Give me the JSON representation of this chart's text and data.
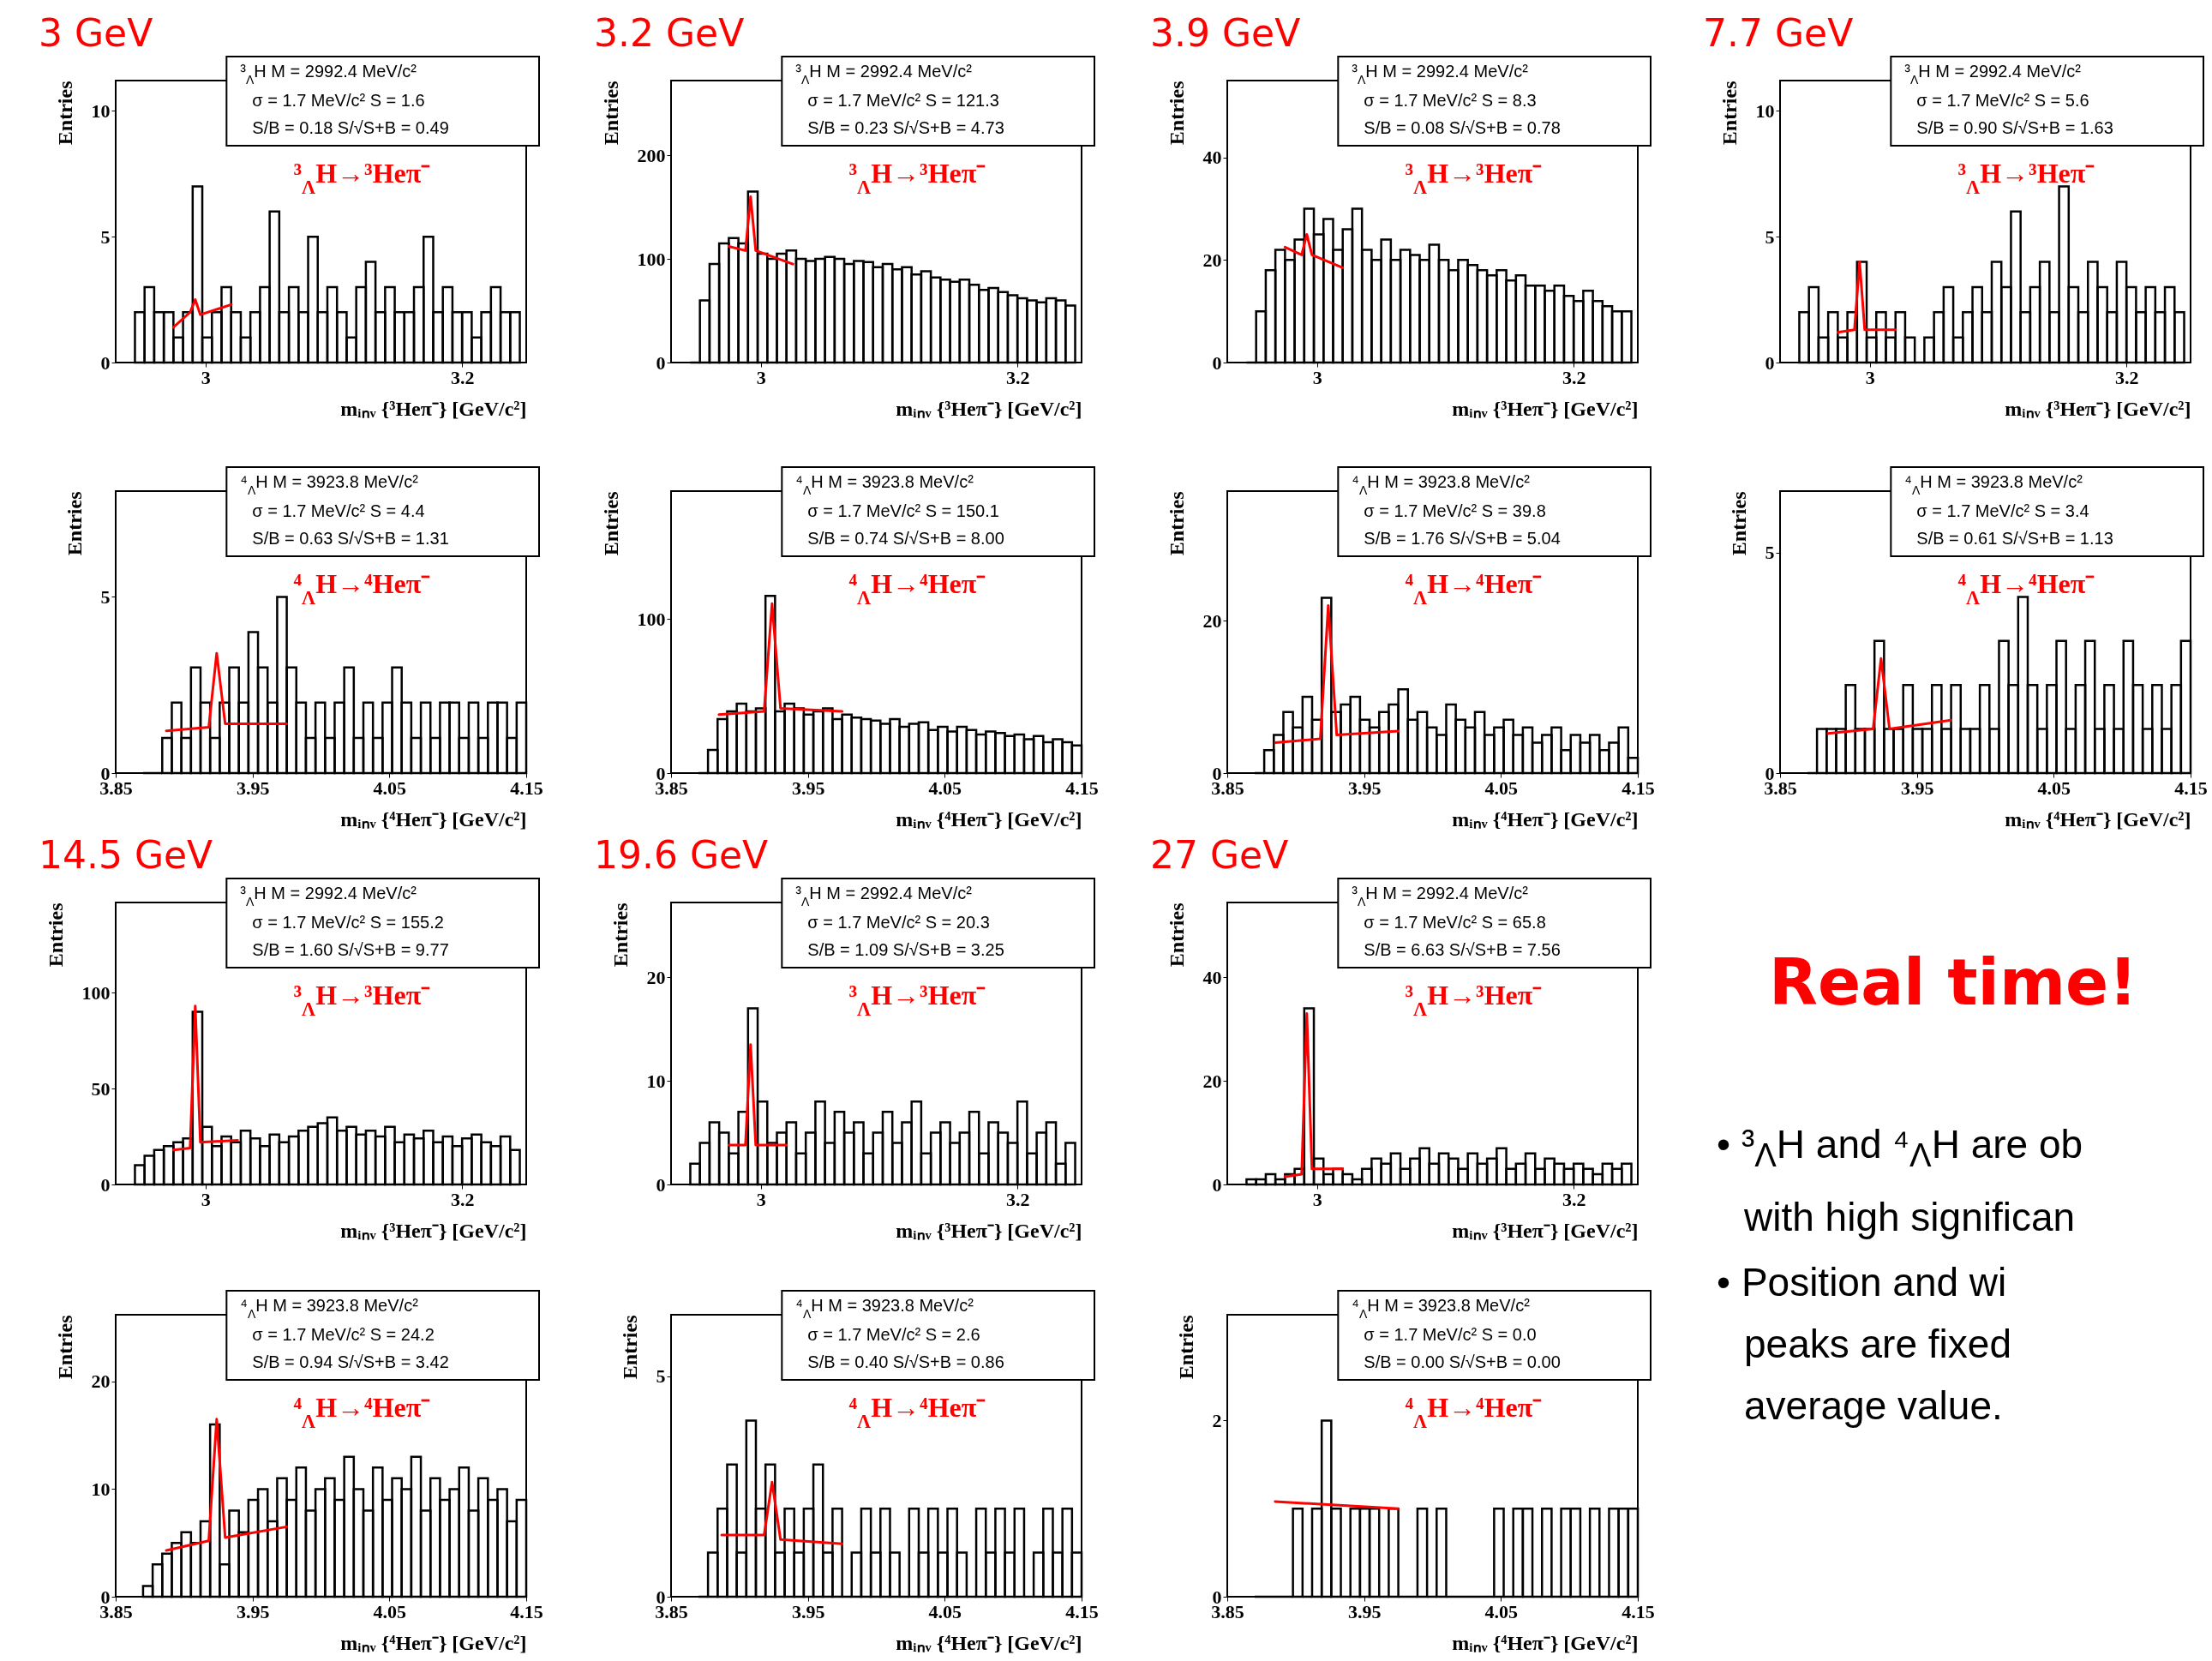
{
  "chart_data": [
    {
      "type": "histogram",
      "title": "3 GeV",
      "xlabel": "mᵢₙᵥ {³Heπ⁻} [GeV/c²]",
      "ylabel": "Entries",
      "xlim": [
        2.93,
        3.25
      ],
      "xticks": [
        3,
        3.2
      ],
      "ylim": [
        0,
        11.2
      ],
      "yticks": [
        0,
        5,
        10
      ],
      "bins": [
        2.945,
        2.9525,
        2.96,
        2.9675,
        2.975,
        2.9825,
        2.99,
        2.9975,
        3.005,
        3.0125,
        3.02,
        3.0275,
        3.035,
        3.0425,
        3.05,
        3.0575,
        3.065,
        3.0725,
        3.08,
        3.0875,
        3.095,
        3.1025,
        3.11,
        3.1175,
        3.125,
        3.1325,
        3.14,
        3.1475,
        3.155,
        3.1625,
        3.17,
        3.1775,
        3.185,
        3.1925,
        3.2,
        3.2075,
        3.215,
        3.2225,
        3.23,
        3.2375,
        3.245
      ],
      "series": [
        {
          "type": "histogram",
          "color": "#000000",
          "values": [
            2,
            3,
            2,
            2,
            1,
            2,
            7,
            1,
            2,
            3,
            2,
            1,
            2,
            3,
            6,
            2,
            3,
            2,
            5,
            2,
            3,
            2,
            1,
            3,
            4,
            2,
            3,
            2,
            2,
            3,
            5,
            2,
            3,
            2,
            2,
            1,
            2,
            3,
            2,
            2
          ]
        },
        {
          "type": "line",
          "color": "#ff0000",
          "x": [
            2.975,
            2.988,
            2.992,
            2.996,
            3.02
          ],
          "values": [
            1.4,
            2.0,
            2.5,
            1.9,
            2.3
          ]
        }
      ],
      "annotations": [
        "³$_{Λ}$H M = 2992.4 MeV/c²",
        "σ = 1.7 MeV/c²  S = 1.6",
        "S/B = 0.18  S/√S+B = 0.49",
        "³$_{Λ}$H→³Heπ⁻"
      ]
    },
    {
      "type": "histogram",
      "title": "3.2 GeV",
      "xlabel": "mᵢₙᵥ {³Heπ⁻} [GeV/c²]",
      "ylabel": "Entries",
      "xlim": [
        2.93,
        3.25
      ],
      "xticks": [
        3,
        3.2
      ],
      "ylim": [
        0,
        272
      ],
      "yticks": [
        0,
        100,
        200
      ],
      "bins": [
        2.945,
        2.9525,
        2.96,
        2.9675,
        2.975,
        2.9825,
        2.99,
        2.9975,
        3.005,
        3.0125,
        3.02,
        3.0275,
        3.035,
        3.0425,
        3.05,
        3.0575,
        3.065,
        3.0725,
        3.08,
        3.0875,
        3.095,
        3.1025,
        3.11,
        3.1175,
        3.125,
        3.1325,
        3.14,
        3.1475,
        3.155,
        3.1625,
        3.17,
        3.1775,
        3.185,
        3.1925,
        3.2,
        3.2075,
        3.215,
        3.2225,
        3.23,
        3.2375,
        3.245
      ],
      "series": [
        {
          "type": "histogram",
          "color": "#000000",
          "values": [
            0,
            60,
            95,
            115,
            120,
            115,
            165,
            105,
            100,
            105,
            108,
            100,
            98,
            100,
            102,
            100,
            95,
            98,
            97,
            92,
            95,
            90,
            92,
            85,
            88,
            82,
            80,
            78,
            80,
            75,
            70,
            72,
            68,
            65,
            62,
            60,
            58,
            62,
            60,
            55
          ]
        },
        {
          "type": "line",
          "color": "#ff0000",
          "x": [
            2.975,
            2.988,
            2.992,
            2.996,
            3.025
          ],
          "values": [
            112,
            108,
            160,
            108,
            95
          ]
        }
      ],
      "annotations": [
        "³$_{Λ}$H M = 2992.4 MeV/c²",
        "σ = 1.7 MeV/c²  S = 121.3",
        "S/B = 0.23  S/√S+B = 4.73",
        "³$_{Λ}$H→³Heπ⁻"
      ]
    },
    {
      "type": "histogram",
      "title": "3.9 GeV",
      "xlabel": "mᵢₙᵥ {³Heπ⁻} [GeV/c²]",
      "ylabel": "Entries",
      "xlim": [
        2.93,
        3.25
      ],
      "xticks": [
        3,
        3.2
      ],
      "ylim": [
        0,
        55
      ],
      "yticks": [
        0,
        20,
        40
      ],
      "bins": [
        2.945,
        2.9525,
        2.96,
        2.9675,
        2.975,
        2.9825,
        2.99,
        2.9975,
        3.005,
        3.0125,
        3.02,
        3.0275,
        3.035,
        3.0425,
        3.05,
        3.0575,
        3.065,
        3.0725,
        3.08,
        3.0875,
        3.095,
        3.1025,
        3.11,
        3.1175,
        3.125,
        3.1325,
        3.14,
        3.1475,
        3.155,
        3.1625,
        3.17,
        3.1775,
        3.185,
        3.1925,
        3.2,
        3.2075,
        3.215,
        3.2225,
        3.23,
        3.2375,
        3.245
      ],
      "series": [
        {
          "type": "histogram",
          "color": "#000000",
          "values": [
            0,
            10,
            18,
            22,
            20,
            24,
            30,
            25,
            28,
            22,
            26,
            30,
            22,
            20,
            24,
            20,
            22,
            21,
            20,
            23,
            20,
            18,
            20,
            19,
            18,
            17,
            18,
            16,
            17,
            15,
            15,
            14,
            15,
            13,
            12,
            14,
            12,
            11,
            10,
            10
          ]
        },
        {
          "type": "line",
          "color": "#ff0000",
          "x": [
            2.975,
            2.988,
            2.992,
            2.996,
            3.02
          ],
          "values": [
            22.5,
            21,
            25,
            21,
            18.5
          ]
        }
      ],
      "annotations": [
        "³$_{Λ}$H M = 2992.4 MeV/c²",
        "σ = 1.7 MeV/c²  S = 8.3",
        "S/B = 0.08  S/√S+B = 0.78",
        "³$_{Λ}$H→³Heπ⁻"
      ]
    },
    {
      "type": "histogram",
      "title": "7.7 GeV",
      "xlabel": "mᵢₙᵥ {³Heπ⁻} [GeV/c²]",
      "ylabel": "Entries",
      "xlim": [
        2.93,
        3.25
      ],
      "xticks": [
        3,
        3.2
      ],
      "ylim": [
        0,
        11.2
      ],
      "yticks": [
        0,
        5,
        10
      ],
      "bins": [
        2.945,
        2.9525,
        2.96,
        2.9675,
        2.975,
        2.9825,
        2.99,
        2.9975,
        3.005,
        3.0125,
        3.02,
        3.0275,
        3.035,
        3.0425,
        3.05,
        3.0575,
        3.065,
        3.0725,
        3.08,
        3.0875,
        3.095,
        3.1025,
        3.11,
        3.1175,
        3.125,
        3.1325,
        3.14,
        3.1475,
        3.155,
        3.1625,
        3.17,
        3.1775,
        3.185,
        3.1925,
        3.2,
        3.2075,
        3.215,
        3.2225,
        3.23,
        3.2375,
        3.245
      ],
      "series": [
        {
          "type": "histogram",
          "color": "#000000",
          "values": [
            2,
            3,
            1,
            2,
            1,
            2,
            4,
            1,
            2,
            1,
            2,
            1,
            0,
            1,
            2,
            3,
            1,
            2,
            3,
            2,
            4,
            3,
            6,
            2,
            3,
            4,
            2,
            7,
            3,
            2,
            4,
            3,
            2,
            4,
            3,
            2,
            3,
            2,
            3,
            2
          ]
        },
        {
          "type": "line",
          "color": "#ff0000",
          "x": [
            2.975,
            2.988,
            2.992,
            2.996,
            3.02
          ],
          "values": [
            1.2,
            1.3,
            4,
            1.3,
            1.3
          ]
        }
      ],
      "annotations": [
        "³$_{Λ}$H M = 2992.4 MeV/c²",
        "σ = 1.7 MeV/c²  S = 5.6",
        "S/B = 0.90  S/√S+B = 1.63",
        "³$_{Λ}$H→³Heπ⁻"
      ]
    },
    {
      "type": "histogram",
      "xlabel": "mᵢₙᵥ {⁴Heπ⁻} [GeV/c²]",
      "ylabel": "Entries",
      "xlim": [
        3.85,
        4.15
      ],
      "xticks": [
        3.85,
        3.95,
        4.05,
        4.15
      ],
      "ylim": [
        0,
        8
      ],
      "yticks": [
        0,
        5
      ],
      "bins": [
        3.87,
        3.877,
        3.884,
        3.891,
        3.898,
        3.905,
        3.912,
        3.919,
        3.926,
        3.933,
        3.94,
        3.947,
        3.954,
        3.961,
        3.968,
        3.975,
        3.982,
        3.989,
        3.996,
        4.003,
        4.01,
        4.017,
        4.024,
        4.031,
        4.038,
        4.045,
        4.052,
        4.059,
        4.066,
        4.073,
        4.08,
        4.087,
        4.094,
        4.101,
        4.108,
        4.115,
        4.122,
        4.129,
        4.136,
        4.143,
        4.15
      ],
      "series": [
        {
          "type": "histogram",
          "color": "#000000",
          "values": [
            0,
            0,
            1,
            2,
            1,
            3,
            2,
            1,
            2,
            3,
            2,
            4,
            3,
            2,
            5,
            3,
            2,
            1,
            2,
            1,
            2,
            3,
            1,
            2,
            1,
            2,
            3,
            2,
            1,
            2,
            1,
            2,
            2,
            1,
            2,
            1,
            2,
            2,
            1,
            2
          ]
        },
        {
          "type": "line",
          "color": "#ff0000",
          "x": [
            3.887,
            3.918,
            3.9238,
            3.93,
            3.975
          ],
          "values": [
            1.2,
            1.3,
            3.4,
            1.4,
            1.4
          ]
        }
      ],
      "annotations": [
        "⁴$_{Λ}$H M = 3923.8 MeV/c²",
        "σ = 1.7 MeV/c²  S = 4.4",
        "S/B = 0.63  S/√S+B = 1.31",
        "⁴$_{Λ}$H→⁴Heπ⁻"
      ]
    },
    {
      "type": "histogram",
      "xlabel": "mᵢₙᵥ {⁴Heπ⁻} [GeV/c²]",
      "ylabel": "Entries",
      "xlim": [
        3.85,
        4.15
      ],
      "xticks": [
        3.85,
        3.95,
        4.05,
        4.15
      ],
      "ylim": [
        0,
        183
      ],
      "yticks": [
        0,
        100
      ],
      "bins": [
        3.87,
        3.877,
        3.884,
        3.891,
        3.898,
        3.905,
        3.912,
        3.919,
        3.926,
        3.933,
        3.94,
        3.947,
        3.954,
        3.961,
        3.968,
        3.975,
        3.982,
        3.989,
        3.996,
        4.003,
        4.01,
        4.017,
        4.024,
        4.031,
        4.038,
        4.045,
        4.052,
        4.059,
        4.066,
        4.073,
        4.08,
        4.087,
        4.094,
        4.101,
        4.108,
        4.115,
        4.122,
        4.129,
        4.136,
        4.143,
        4.15
      ],
      "series": [
        {
          "type": "histogram",
          "color": "#000000",
          "values": [
            0,
            15,
            35,
            40,
            45,
            40,
            42,
            115,
            40,
            45,
            42,
            38,
            40,
            42,
            35,
            38,
            36,
            35,
            34,
            32,
            35,
            30,
            32,
            33,
            28,
            30,
            27,
            30,
            28,
            25,
            27,
            26,
            24,
            25,
            22,
            24,
            20,
            22,
            20,
            18
          ]
        },
        {
          "type": "line",
          "color": "#ff0000",
          "x": [
            3.885,
            3.918,
            3.9238,
            3.93,
            3.975
          ],
          "values": [
            38,
            40,
            110,
            42,
            40
          ]
        }
      ],
      "annotations": [
        "⁴$_{Λ}$H M = 3923.8 MeV/c²",
        "σ = 1.7 MeV/c²  S = 150.1",
        "S/B = 0.74  S/√S+B = 8.00",
        "⁴$_{Λ}$H→⁴Heπ⁻"
      ]
    },
    {
      "type": "histogram",
      "xlabel": "mᵢₙᵥ {⁴Heπ⁻} [GeV/c²]",
      "ylabel": "Entries",
      "xlim": [
        3.85,
        4.15
      ],
      "xticks": [
        3.85,
        3.95,
        4.05,
        4.15
      ],
      "ylim": [
        0,
        37
      ],
      "yticks": [
        0,
        20
      ],
      "bins": [
        3.87,
        3.877,
        3.884,
        3.891,
        3.898,
        3.905,
        3.912,
        3.919,
        3.926,
        3.933,
        3.94,
        3.947,
        3.954,
        3.961,
        3.968,
        3.975,
        3.982,
        3.989,
        3.996,
        4.003,
        4.01,
        4.017,
        4.024,
        4.031,
        4.038,
        4.045,
        4.052,
        4.059,
        4.066,
        4.073,
        4.08,
        4.087,
        4.094,
        4.101,
        4.108,
        4.115,
        4.122,
        4.129,
        4.136,
        4.143,
        4.15
      ],
      "series": [
        {
          "type": "histogram",
          "color": "#000000",
          "values": [
            0,
            3,
            5,
            8,
            6,
            10,
            7,
            23,
            8,
            9,
            10,
            7,
            6,
            8,
            9,
            11,
            7,
            8,
            6,
            5,
            9,
            7,
            6,
            8,
            5,
            6,
            7,
            5,
            6,
            4,
            5,
            6,
            3,
            5,
            4,
            5,
            3,
            4,
            6,
            2
          ]
        },
        {
          "type": "line",
          "color": "#ff0000",
          "x": [
            3.885,
            3.918,
            3.9238,
            3.93,
            3.975
          ],
          "values": [
            4,
            4.5,
            22,
            5,
            5.5
          ]
        }
      ],
      "annotations": [
        "⁴$_{Λ}$H M = 3923.8 MeV/c²",
        "σ = 1.7 MeV/c²  S = 39.8",
        "S/B = 1.76  S/√S+B = 5.04",
        "⁴$_{Λ}$H→⁴Heπ⁻"
      ]
    },
    {
      "type": "histogram",
      "xlabel": "mᵢₙᵥ {⁴Heπ⁻} [GeV/c²]",
      "ylabel": "Entries",
      "xlim": [
        3.85,
        4.15
      ],
      "xticks": [
        3.85,
        3.95,
        4.05,
        4.15
      ],
      "ylim": [
        0,
        6.4
      ],
      "yticks": [
        0,
        5
      ],
      "bins": [
        3.87,
        3.877,
        3.884,
        3.891,
        3.898,
        3.905,
        3.912,
        3.919,
        3.926,
        3.933,
        3.94,
        3.947,
        3.954,
        3.961,
        3.968,
        3.975,
        3.982,
        3.989,
        3.996,
        4.003,
        4.01,
        4.017,
        4.024,
        4.031,
        4.038,
        4.045,
        4.052,
        4.059,
        4.066,
        4.073,
        4.08,
        4.087,
        4.094,
        4.101,
        4.108,
        4.115,
        4.122,
        4.129,
        4.136,
        4.143,
        4.15
      ],
      "series": [
        {
          "type": "histogram",
          "color": "#000000",
          "values": [
            0,
            1,
            1,
            1,
            2,
            1,
            1,
            3,
            1,
            1,
            2,
            1,
            1,
            2,
            1,
            2,
            1,
            1,
            2,
            1,
            3,
            2,
            4,
            2,
            1,
            2,
            3,
            1,
            2,
            3,
            1,
            2,
            1,
            3,
            2,
            1,
            2,
            1,
            2,
            3
          ]
        },
        {
          "type": "line",
          "color": "#ff0000",
          "x": [
            3.885,
            3.918,
            3.9238,
            3.93,
            3.975
          ],
          "values": [
            0.9,
            1.0,
            2.6,
            1.0,
            1.2
          ]
        }
      ],
      "annotations": [
        "⁴$_{Λ}$H M = 3923.8 MeV/c²",
        "σ = 1.7 MeV/c²  S = 3.4",
        "S/B = 0.61  S/√S+B = 1.13",
        "⁴$_{Λ}$H→⁴Heπ⁻"
      ]
    },
    {
      "type": "histogram",
      "title": "14.5 GeV",
      "xlabel": "mᵢₙᵥ {³Heπ⁻} [GeV/c²]",
      "ylabel": "Entries",
      "xlim": [
        2.93,
        3.25
      ],
      "xticks": [
        3,
        3.2
      ],
      "ylim": [
        0,
        147
      ],
      "yticks": [
        0,
        50,
        100
      ],
      "bins": [
        2.945,
        2.9525,
        2.96,
        2.9675,
        2.975,
        2.9825,
        2.99,
        2.9975,
        3.005,
        3.0125,
        3.02,
        3.0275,
        3.035,
        3.0425,
        3.05,
        3.0575,
        3.065,
        3.0725,
        3.08,
        3.0875,
        3.095,
        3.1025,
        3.11,
        3.1175,
        3.125,
        3.1325,
        3.14,
        3.1475,
        3.155,
        3.1625,
        3.17,
        3.1775,
        3.185,
        3.1925,
        3.2,
        3.2075,
        3.215,
        3.2225,
        3.23,
        3.2375,
        3.245
      ],
      "series": [
        {
          "type": "histogram",
          "color": "#000000",
          "values": [
            10,
            15,
            18,
            20,
            22,
            24,
            90,
            30,
            20,
            25,
            22,
            28,
            24,
            20,
            26,
            22,
            25,
            28,
            30,
            32,
            35,
            28,
            30,
            26,
            28,
            25,
            30,
            22,
            26,
            24,
            28,
            22,
            25,
            20,
            24,
            26,
            22,
            20,
            25,
            18
          ]
        },
        {
          "type": "line",
          "color": "#ff0000",
          "x": [
            2.975,
            2.988,
            2.992,
            2.996,
            3.025
          ],
          "values": [
            18,
            19,
            93,
            22,
            23
          ]
        }
      ],
      "annotations": [
        "³$_{Λ}$H M = 2992.4 MeV/c²",
        "σ = 1.7 MeV/c²  S = 155.2",
        "S/B = 1.60  S/√S+B = 9.77",
        "³$_{Λ}$H→³Heπ⁻"
      ]
    },
    {
      "type": "histogram",
      "title": "19.6 GeV",
      "xlabel": "mᵢₙᵥ {³Heπ⁻} [GeV/c²]",
      "ylabel": "Entries",
      "xlim": [
        2.93,
        3.25
      ],
      "xticks": [
        3,
        3.2
      ],
      "ylim": [
        0,
        27.2
      ],
      "yticks": [
        0,
        10,
        20
      ],
      "bins": [
        2.945,
        2.9525,
        2.96,
        2.9675,
        2.975,
        2.9825,
        2.99,
        2.9975,
        3.005,
        3.0125,
        3.02,
        3.0275,
        3.035,
        3.0425,
        3.05,
        3.0575,
        3.065,
        3.0725,
        3.08,
        3.0875,
        3.095,
        3.1025,
        3.11,
        3.1175,
        3.125,
        3.1325,
        3.14,
        3.1475,
        3.155,
        3.1625,
        3.17,
        3.1775,
        3.185,
        3.1925,
        3.2,
        3.2075,
        3.215,
        3.2225,
        3.23,
        3.2375,
        3.245
      ],
      "series": [
        {
          "type": "histogram",
          "color": "#000000",
          "values": [
            2,
            4,
            6,
            5,
            3,
            7,
            17,
            8,
            4,
            5,
            6,
            3,
            5,
            8,
            4,
            7,
            5,
            6,
            3,
            5,
            7,
            4,
            6,
            8,
            3,
            5,
            6,
            4,
            5,
            7,
            3,
            6,
            5,
            4,
            8,
            3,
            5,
            6,
            2,
            4
          ]
        },
        {
          "type": "line",
          "color": "#ff0000",
          "x": [
            2.975,
            2.988,
            2.992,
            2.996,
            3.02
          ],
          "values": [
            3.8,
            3.8,
            13.5,
            3.8,
            3.8
          ]
        }
      ],
      "annotations": [
        "³$_{Λ}$H M = 2992.4 MeV/c²",
        "σ = 1.7 MeV/c²  S = 20.3",
        "S/B = 1.09  S/√S+B = 3.25",
        "³$_{Λ}$H→³Heπ⁻"
      ]
    },
    {
      "type": "histogram",
      "title": "27 GeV",
      "xlabel": "mᵢₙᵥ {³Heπ⁻} [GeV/c²]",
      "ylabel": "Entries",
      "xlim": [
        2.93,
        3.25
      ],
      "xticks": [
        3,
        3.2
      ],
      "ylim": [
        0,
        54.4
      ],
      "yticks": [
        0,
        20,
        40
      ],
      "bins": [
        2.945,
        2.9525,
        2.96,
        2.9675,
        2.975,
        2.9825,
        2.99,
        2.9975,
        3.005,
        3.0125,
        3.02,
        3.0275,
        3.035,
        3.0425,
        3.05,
        3.0575,
        3.065,
        3.0725,
        3.08,
        3.0875,
        3.095,
        3.1025,
        3.11,
        3.1175,
        3.125,
        3.1325,
        3.14,
        3.1475,
        3.155,
        3.1625,
        3.17,
        3.1775,
        3.185,
        3.1925,
        3.2,
        3.2075,
        3.215,
        3.2225,
        3.23,
        3.2375,
        3.245
      ],
      "series": [
        {
          "type": "histogram",
          "color": "#000000",
          "values": [
            1,
            1,
            2,
            1,
            2,
            3,
            34,
            5,
            2,
            3,
            2,
            1,
            3,
            5,
            4,
            6,
            3,
            5,
            7,
            4,
            6,
            5,
            3,
            6,
            4,
            5,
            7,
            3,
            4,
            6,
            3,
            5,
            4,
            3,
            4,
            3,
            2,
            4,
            3,
            4
          ]
        },
        {
          "type": "line",
          "color": "#ff0000",
          "x": [
            2.975,
            2.988,
            2.992,
            2.996,
            3.02
          ],
          "values": [
            1.5,
            2,
            33,
            3,
            3
          ]
        }
      ],
      "annotations": [
        "³$_{Λ}$H M = 2992.4 MeV/c²",
        "σ = 1.7 MeV/c²  S = 65.8",
        "S/B = 6.63  S/√S+B = 7.56",
        "³$_{Λ}$H→³Heπ⁻"
      ]
    },
    {
      "type": "other",
      "title": "Real time!",
      "annotations": [
        "• ³$_{Λ}$H and ⁴$_{Λ}$H are ob\nwith high significan",
        "• Position and wi\npeaks are fixed\naverage value."
      ]
    },
    {
      "type": "histogram",
      "xlabel": "mᵢₙᵥ {⁴Heπ⁻} [GeV/c²]",
      "ylabel": "Entries",
      "xlim": [
        3.85,
        4.15
      ],
      "xticks": [
        3.85,
        3.95,
        4.05,
        4.15
      ],
      "ylim": [
        0,
        26.2
      ],
      "yticks": [
        0,
        10,
        20
      ],
      "bins": [
        3.87,
        3.877,
        3.884,
        3.891,
        3.898,
        3.905,
        3.912,
        3.919,
        3.926,
        3.933,
        3.94,
        3.947,
        3.954,
        3.961,
        3.968,
        3.975,
        3.982,
        3.989,
        3.996,
        4.003,
        4.01,
        4.017,
        4.024,
        4.031,
        4.038,
        4.045,
        4.052,
        4.059,
        4.066,
        4.073,
        4.08,
        4.087,
        4.094,
        4.101,
        4.108,
        4.115,
        4.122,
        4.129,
        4.136,
        4.143,
        4.15
      ],
      "series": [
        {
          "type": "histogram",
          "color": "#000000",
          "values": [
            1,
            3,
            4,
            5,
            6,
            5,
            7,
            16,
            3,
            8,
            6,
            9,
            10,
            7,
            11,
            9,
            12,
            8,
            10,
            11,
            9,
            13,
            10,
            8,
            12,
            9,
            11,
            10,
            13,
            8,
            11,
            9,
            10,
            12,
            8,
            11,
            9,
            10,
            7,
            9
          ]
        },
        {
          "type": "line",
          "color": "#ff0000",
          "x": [
            3.887,
            3.918,
            3.9238,
            3.93,
            3.975
          ],
          "values": [
            4.3,
            5.2,
            16.5,
            5.5,
            6.5
          ]
        }
      ],
      "annotations": [
        "⁴$_{Λ}$H M = 3923.8 MeV/c²",
        "σ = 1.7 MeV/c²  S = 24.2",
        "S/B = 0.94  S/√S+B = 3.42",
        "⁴$_{Λ}$H→⁴Heπ⁻"
      ]
    },
    {
      "type": "histogram",
      "xlabel": "mᵢₙᵥ {⁴Heπ⁻} [GeV/c²]",
      "ylabel": "Entries",
      "xlim": [
        3.85,
        4.15
      ],
      "xticks": [
        3.85,
        3.95,
        4.05,
        4.15
      ],
      "ylim": [
        0,
        6.4
      ],
      "yticks": [
        0,
        5
      ],
      "bins": [
        3.87,
        3.877,
        3.884,
        3.891,
        3.898,
        3.905,
        3.912,
        3.919,
        3.926,
        3.933,
        3.94,
        3.947,
        3.954,
        3.961,
        3.968,
        3.975,
        3.982,
        3.989,
        3.996,
        4.003,
        4.01,
        4.017,
        4.024,
        4.031,
        4.038,
        4.045,
        4.052,
        4.059,
        4.066,
        4.073,
        4.08,
        4.087,
        4.094,
        4.101,
        4.108,
        4.115,
        4.122,
        4.129,
        4.136,
        4.143,
        4.15
      ],
      "series": [
        {
          "type": "histogram",
          "color": "#000000",
          "values": [
            0,
            1,
            2,
            3,
            1,
            4,
            2,
            3,
            1,
            2,
            1,
            2,
            3,
            1,
            2,
            0,
            1,
            2,
            1,
            2,
            1,
            0,
            2,
            1,
            2,
            1,
            2,
            1,
            0,
            2,
            1,
            2,
            1,
            2,
            0,
            1,
            2,
            1,
            2,
            1
          ]
        },
        {
          "type": "line",
          "color": "#ff0000",
          "x": [
            3.887,
            3.918,
            3.9238,
            3.93,
            3.975
          ],
          "values": [
            1.4,
            1.4,
            2.6,
            1.3,
            1.2
          ]
        }
      ],
      "annotations": [
        "⁴$_{Λ}$H M = 3923.8 MeV/c²",
        "σ = 1.7 MeV/c²  S = 2.6",
        "S/B = 0.40  S/√S+B = 0.86",
        "⁴$_{Λ}$H→⁴Heπ⁻"
      ]
    },
    {
      "type": "histogram",
      "xlabel": "mᵢₙᵥ {⁴Heπ⁻} [GeV/c²]",
      "ylabel": "Entries",
      "xlim": [
        3.85,
        4.15
      ],
      "xticks": [
        3.85,
        3.95,
        4.05,
        4.15
      ],
      "ylim": [
        0,
        3.2
      ],
      "yticks": [
        0,
        2
      ],
      "bins": [
        3.87,
        3.877,
        3.884,
        3.891,
        3.898,
        3.905,
        3.912,
        3.919,
        3.926,
        3.933,
        3.94,
        3.947,
        3.954,
        3.961,
        3.968,
        3.975,
        3.982,
        3.989,
        3.996,
        4.003,
        4.01,
        4.017,
        4.024,
        4.031,
        4.038,
        4.045,
        4.052,
        4.059,
        4.066,
        4.073,
        4.08,
        4.087,
        4.094,
        4.101,
        4.108,
        4.115,
        4.122,
        4.129,
        4.136,
        4.143,
        4.15
      ],
      "series": [
        {
          "type": "histogram",
          "color": "#000000",
          "values": [
            0,
            0,
            0,
            0,
            1,
            0,
            1,
            2,
            1,
            0,
            1,
            1,
            1,
            0,
            1,
            0,
            0,
            1,
            0,
            1,
            0,
            0,
            0,
            0,
            0,
            1,
            0,
            1,
            1,
            0,
            1,
            0,
            1,
            1,
            0,
            1,
            0,
            1,
            1,
            1
          ]
        },
        {
          "type": "line",
          "color": "#ff0000",
          "x": [
            3.885,
            3.975
          ],
          "values": [
            1.08,
            1.0
          ]
        }
      ],
      "annotations": [
        "⁴$_{Λ}$H M = 3923.8 MeV/c²",
        "σ = 1.7 MeV/c²  S = 0.0",
        "S/B = 0.00  S/√S+B = 0.00",
        "⁴$_{Λ}$H→⁴Heπ⁻"
      ]
    }
  ]
}
